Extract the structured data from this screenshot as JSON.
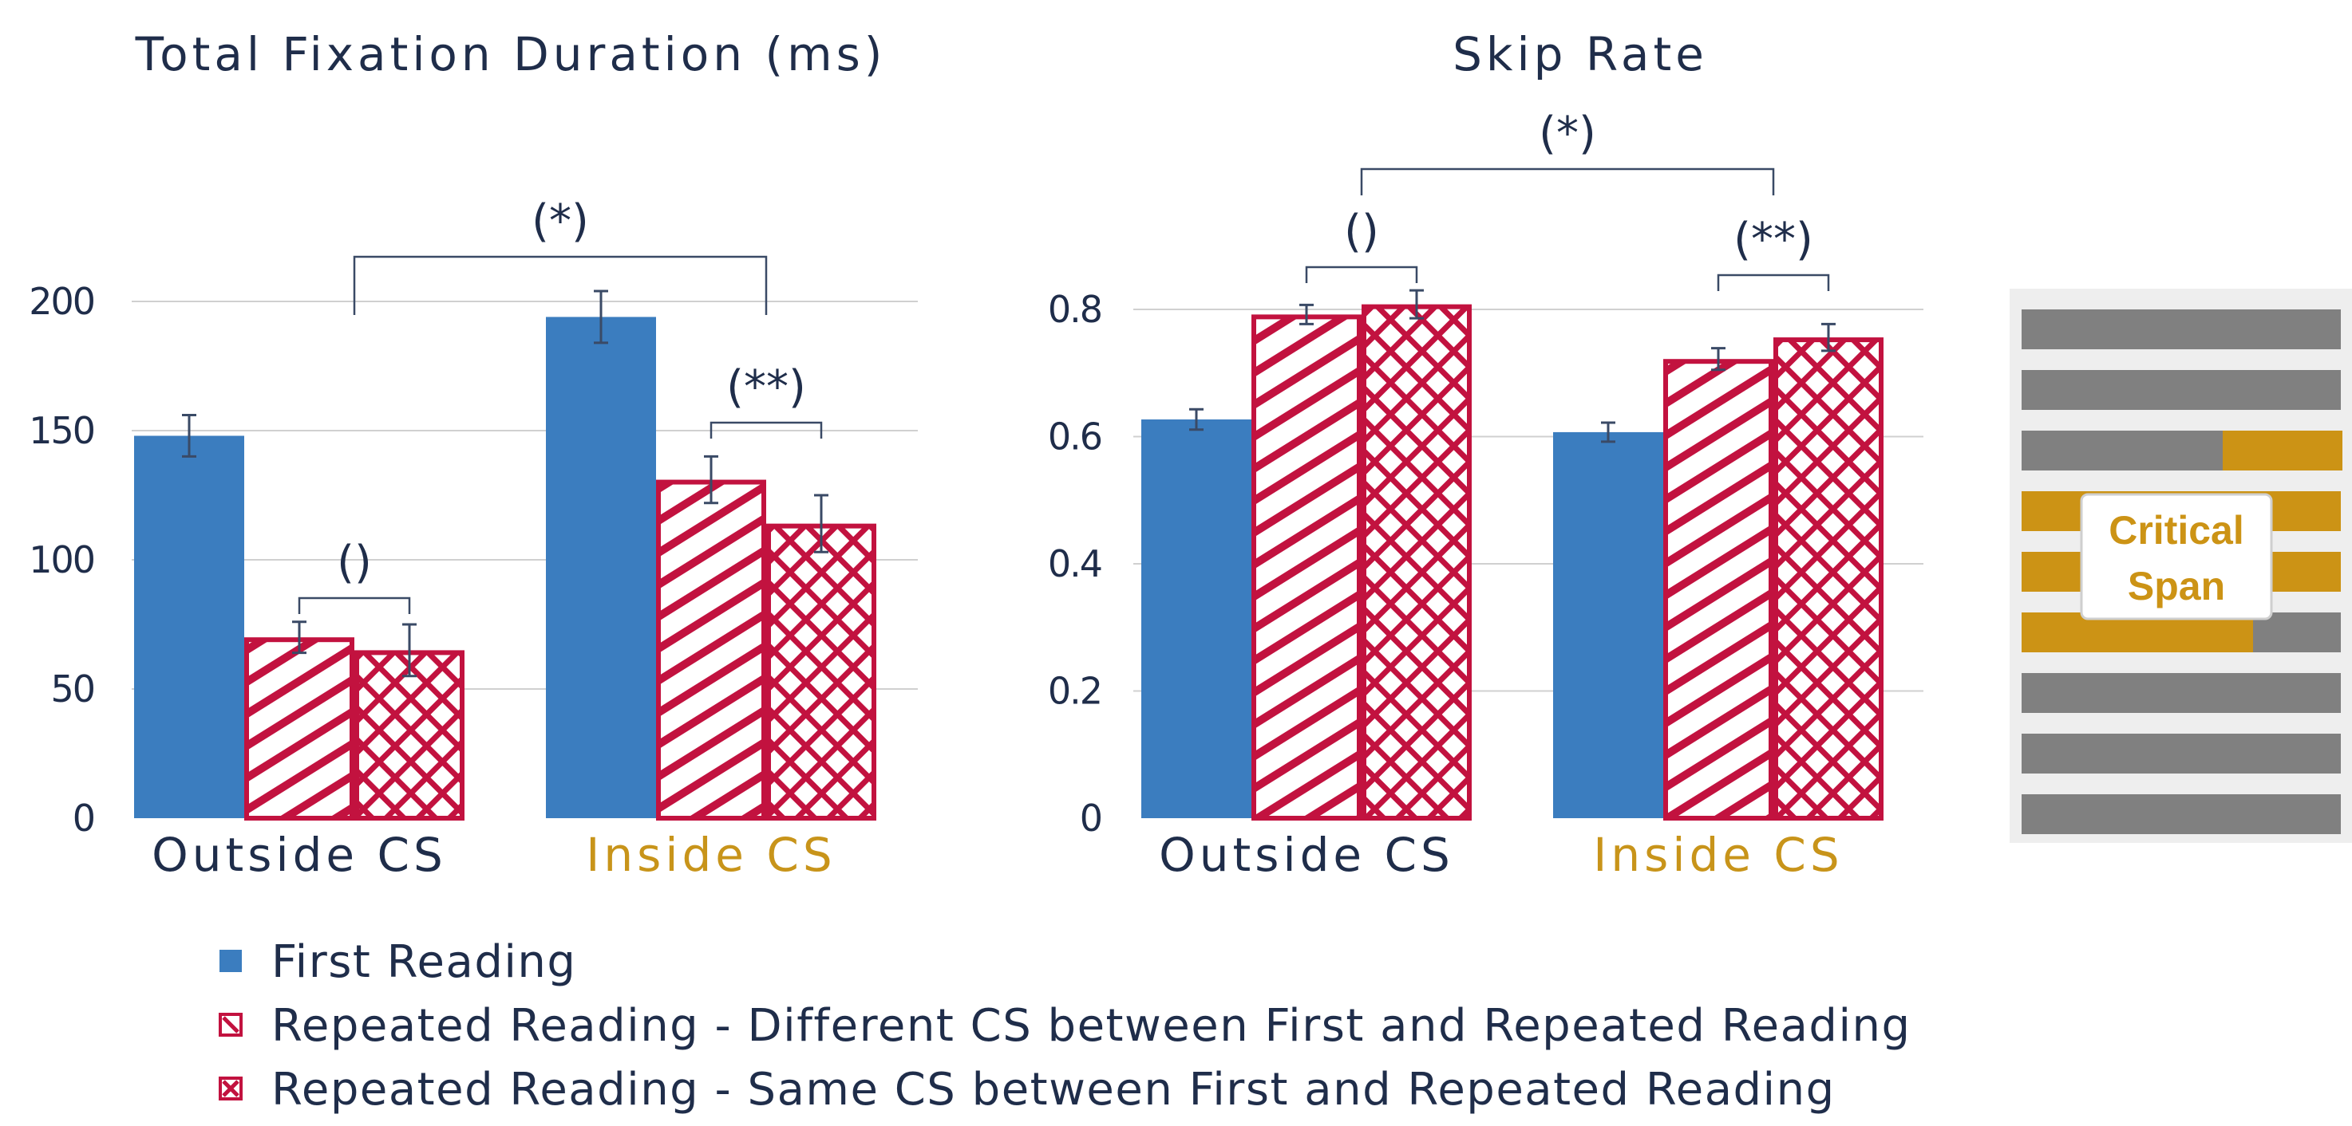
{
  "colors": {
    "first": "#3b7dbf",
    "repeated": "#c2123f",
    "text": "#1f2d4a",
    "inside": "#c8941a",
    "grid": "#d0d0d0",
    "sketch_gray": "#808080",
    "sketch_gold": "#cc9315",
    "sketch_bg": "#eeeeee"
  },
  "chart_data": [
    {
      "type": "bar",
      "title": "Total Fixation Duration (ms)",
      "categories": [
        "Outside CS",
        "Inside CS"
      ],
      "category_colors": [
        "#1f2d4a",
        "#c8941a"
      ],
      "ylim": [
        0,
        200
      ],
      "yticks": [
        0,
        50,
        100,
        150,
        200
      ],
      "ytick_labels": [
        "0",
        "50",
        "100",
        "150",
        "200"
      ],
      "grid": true,
      "series": [
        {
          "values": [
            148,
            194
          ],
          "errors": [
            8,
            10
          ]
        },
        {
          "values": [
            70,
            131
          ],
          "errors": [
            6,
            9
          ]
        },
        {
          "values": [
            65,
            114
          ],
          "errors": [
            10,
            11
          ]
        }
      ],
      "annotations": [
        {
          "label": "()",
          "category": 0,
          "from_series": 1,
          "to_series": 2
        },
        {
          "label": "(**)",
          "category": 1,
          "from_series": 1,
          "to_series": 2
        },
        {
          "label": "(*)",
          "between_categories": true
        }
      ]
    },
    {
      "type": "bar",
      "title": "Skip Rate",
      "categories": [
        "Outside CS",
        "Inside CS"
      ],
      "category_colors": [
        "#1f2d4a",
        "#c8941a"
      ],
      "ylim": [
        0,
        0.8
      ],
      "yticks": [
        0,
        0.2,
        0.4,
        0.6,
        0.8
      ],
      "ytick_labels": [
        "0",
        "0.2",
        "0.4",
        "0.6",
        "0.8"
      ],
      "grid": true,
      "series": [
        {
          "values": [
            0.627,
            0.607
          ],
          "errors": [
            0.016,
            0.015
          ]
        },
        {
          "values": [
            0.792,
            0.722
          ],
          "errors": [
            0.015,
            0.017
          ]
        },
        {
          "values": [
            0.808,
            0.756
          ],
          "errors": [
            0.022,
            0.021
          ]
        }
      ],
      "annotations": [
        {
          "label": "()",
          "category": 0,
          "from_series": 1,
          "to_series": 2
        },
        {
          "label": "(**)",
          "category": 1,
          "from_series": 1,
          "to_series": 2
        },
        {
          "label": "(*)",
          "between_categories": true
        }
      ]
    }
  ],
  "critical_span_label": [
    "Critical",
    "Span"
  ],
  "legend": [
    {
      "label": "First Reading",
      "pattern": "solid"
    },
    {
      "label": "Repeated Reading - Different CS between First and Repeated Reading",
      "pattern": "diagonal"
    },
    {
      "label": "Repeated Reading - Same CS between First and Repeated Reading",
      "pattern": "crosshatch"
    }
  ]
}
